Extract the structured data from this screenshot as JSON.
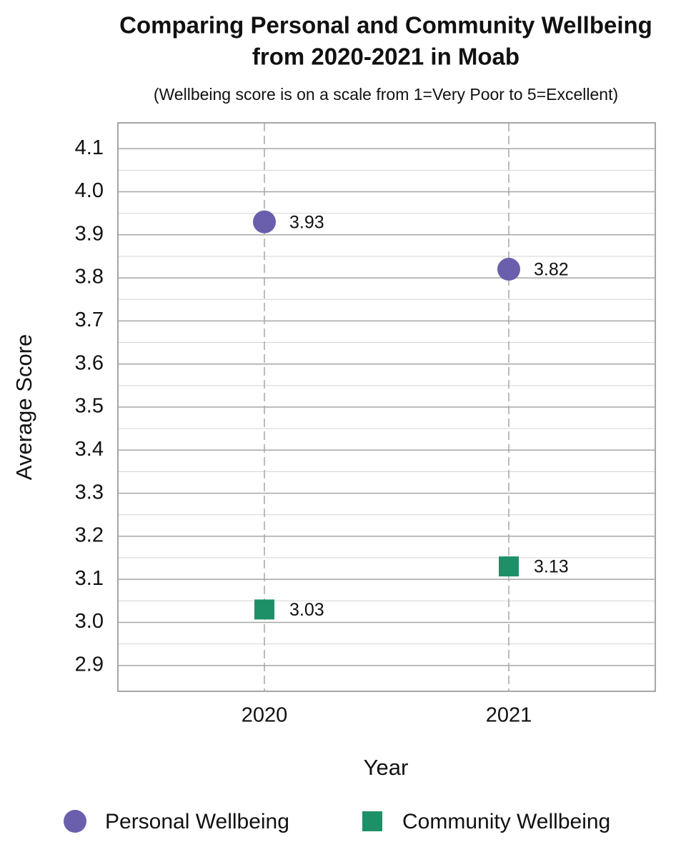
{
  "chart_data": {
    "type": "scatter",
    "title": [
      "Comparing Personal and Community Wellbeing",
      "from 2020-2021 in Moab"
    ],
    "subtitle": "(Wellbeing score is on a scale from 1=Very Poor to 5=Excellent)",
    "x_label": "Year",
    "y_label": "Average Score",
    "categories": [
      "2020",
      "2021"
    ],
    "series": [
      {
        "name": "Personal Wellbeing",
        "color": "#6a5fac",
        "marker": "circle",
        "values": [
          3.93,
          3.82
        ]
      },
      {
        "name": "Community Wellbeing",
        "color": "#1e9068",
        "marker": "square",
        "values": [
          3.03,
          3.13
        ]
      }
    ],
    "ylim": [
      2.84,
      4.16
    ],
    "yticks": [
      {
        "value": 2.9,
        "label": "2.9"
      },
      {
        "value": 3.0,
        "label": "3.0"
      },
      {
        "value": 3.1,
        "label": "3.1"
      },
      {
        "value": 3.2,
        "label": "3.2"
      },
      {
        "value": 3.3,
        "label": "3.3"
      },
      {
        "value": 3.4,
        "label": "3.4"
      },
      {
        "value": 3.5,
        "label": "3.5"
      },
      {
        "value": 3.6,
        "label": "3.6"
      },
      {
        "value": 3.7,
        "label": "3.7"
      },
      {
        "value": 3.8,
        "label": "3.8"
      },
      {
        "value": 3.9,
        "label": "3.9"
      },
      {
        "value": 4.0,
        "label": "4.0"
      },
      {
        "value": 4.1,
        "label": "4.1"
      }
    ],
    "minor_yticks": [
      2.95,
      3.05,
      3.15,
      3.25,
      3.35,
      3.45,
      3.55,
      3.65,
      3.75,
      3.85,
      3.95,
      4.05
    ],
    "grid": true,
    "legend": "bottom"
  }
}
